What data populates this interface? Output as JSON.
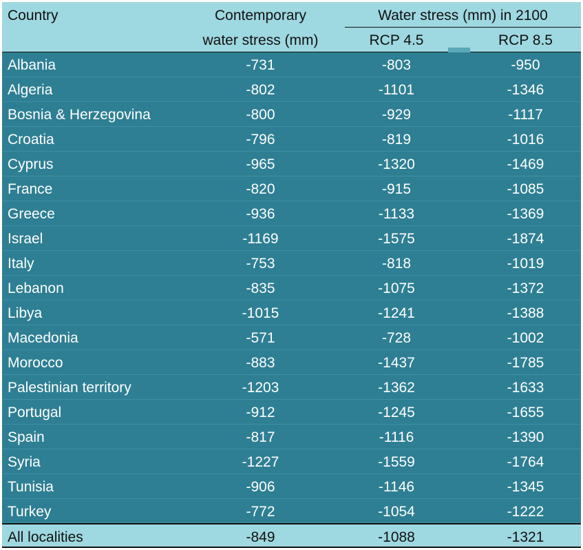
{
  "header": {
    "country": "Country",
    "contemporary_line1": "Contemporary",
    "contemporary_line2": "water stress (mm)",
    "future_group": "Water stress (mm) in 2100",
    "rcp45": "RCP 4.5",
    "rcp85": "RCP 8.5"
  },
  "rows": [
    {
      "country": "Albania",
      "contemporary": "-731",
      "rcp45": "-803",
      "rcp85": "-950"
    },
    {
      "country": "Algeria",
      "contemporary": "-802",
      "rcp45": "-1101",
      "rcp85": "-1346"
    },
    {
      "country": "Bosnia & Herzegovina",
      "contemporary": "-800",
      "rcp45": "-929",
      "rcp85": "-1117"
    },
    {
      "country": "Croatia",
      "contemporary": "-796",
      "rcp45": "-819",
      "rcp85": "-1016"
    },
    {
      "country": "Cyprus",
      "contemporary": "-965",
      "rcp45": "-1320",
      "rcp85": "-1469"
    },
    {
      "country": "France",
      "contemporary": "-820",
      "rcp45": "-915",
      "rcp85": "-1085"
    },
    {
      "country": "Greece",
      "contemporary": "-936",
      "rcp45": "-1133",
      "rcp85": "-1369"
    },
    {
      "country": "Israel",
      "contemporary": "-1169",
      "rcp45": "-1575",
      "rcp85": "-1874"
    },
    {
      "country": "Italy",
      "contemporary": "-753",
      "rcp45": "-818",
      "rcp85": "-1019"
    },
    {
      "country": "Lebanon",
      "contemporary": "-835",
      "rcp45": "-1075",
      "rcp85": "-1372"
    },
    {
      "country": "Libya",
      "contemporary": "-1015",
      "rcp45": "-1241",
      "rcp85": "-1388"
    },
    {
      "country": "Macedonia",
      "contemporary": "-571",
      "rcp45": "-728",
      "rcp85": "-1002"
    },
    {
      "country": "Morocco",
      "contemporary": "-883",
      "rcp45": "-1437",
      "rcp85": "-1785"
    },
    {
      "country": "Palestinian territory",
      "contemporary": "-1203",
      "rcp45": "-1362",
      "rcp85": "-1633"
    },
    {
      "country": "Portugal",
      "contemporary": "-912",
      "rcp45": "-1245",
      "rcp85": "-1655"
    },
    {
      "country": "Spain",
      "contemporary": "-817",
      "rcp45": "-1116",
      "rcp85": "-1390"
    },
    {
      "country": "Syria",
      "contemporary": "-1227",
      "rcp45": "-1559",
      "rcp85": "-1764"
    },
    {
      "country": "Tunisia",
      "contemporary": "-906",
      "rcp45": "-1146",
      "rcp85": "-1345"
    },
    {
      "country": "Turkey",
      "contemporary": "-772",
      "rcp45": "-1054",
      "rcp85": "-1222"
    }
  ],
  "total": {
    "country": "All localities",
    "contemporary": "-849",
    "rcp45": "-1088",
    "rcp85": "-1321"
  },
  "colors": {
    "header_bg": "#9ed8e0",
    "body_bg": "#2e7f93",
    "body_text": "#ffffff",
    "header_text": "#111111"
  }
}
